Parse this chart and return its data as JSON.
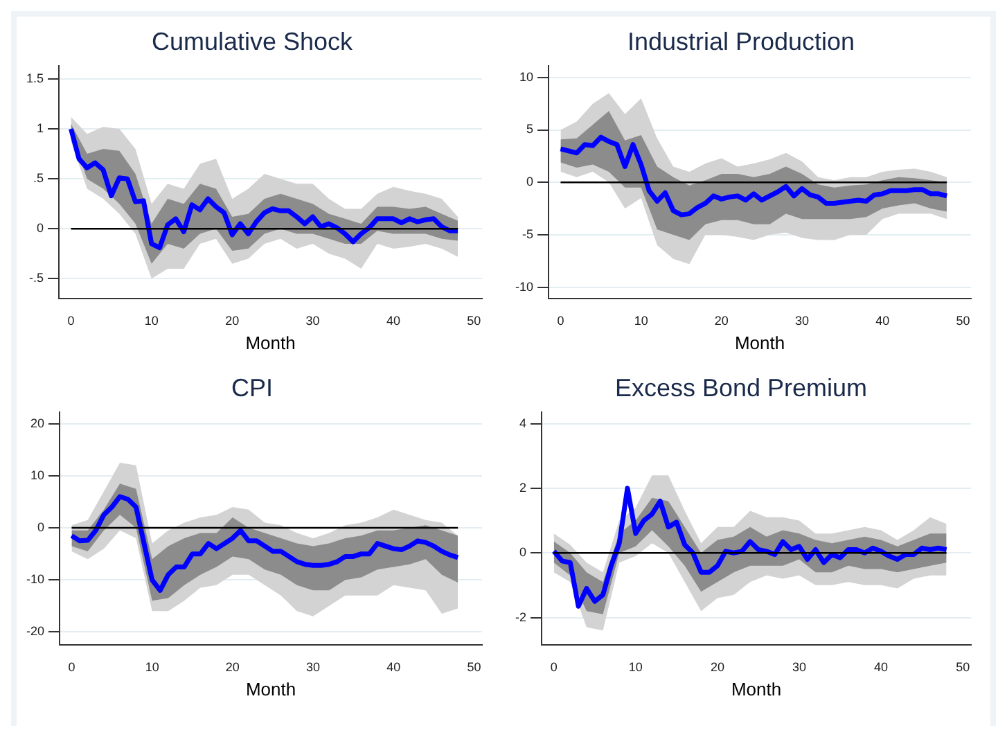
{
  "chart_data": [
    {
      "type": "line",
      "title": "Cumulative Shock",
      "xlabel": "Month",
      "xlim": [
        -1.5,
        51
      ],
      "xticks": [
        0,
        10,
        20,
        30,
        40,
        50
      ],
      "ylim": [
        -0.7,
        1.63
      ],
      "yticks": [
        {
          "value": -0.5,
          "label": "-.5"
        },
        0,
        {
          "value": 0.5,
          "label": ".5"
        },
        1,
        1.5
      ],
      "grid": "y",
      "legend": false,
      "ref_lines": [
        {
          "axis": "y",
          "value": 0,
          "color": "#000000"
        }
      ],
      "series": [
        {
          "color": "#d3d3d3",
          "x": [
            0,
            2,
            4,
            6,
            8,
            10,
            12,
            14,
            16,
            18,
            20,
            22,
            24,
            26,
            28,
            30,
            32,
            34,
            36,
            38,
            40,
            42,
            44,
            46,
            48
          ],
          "values": [
            null,
            null,
            null,
            null,
            null,
            null,
            null,
            null,
            null,
            null,
            null,
            null,
            null,
            null,
            null,
            null,
            null,
            null,
            null,
            null,
            null,
            null,
            null,
            null,
            null
          ],
          "lower": [
            0.88,
            0.4,
            0.3,
            0.15,
            -0.05,
            -0.5,
            -0.4,
            -0.4,
            -0.15,
            -0.1,
            -0.35,
            -0.3,
            -0.15,
            -0.1,
            -0.2,
            -0.15,
            -0.25,
            -0.3,
            -0.4,
            -0.15,
            -0.2,
            -0.18,
            -0.15,
            -0.2,
            -0.28
          ],
          "upper": [
            1.12,
            0.95,
            1.02,
            1.0,
            0.8,
            0.25,
            0.45,
            0.4,
            0.65,
            0.7,
            0.3,
            0.4,
            0.55,
            0.5,
            0.45,
            0.45,
            0.3,
            0.2,
            0.2,
            0.35,
            0.42,
            0.38,
            0.35,
            0.3,
            0.12
          ]
        },
        {
          "color": "#8c8c8c",
          "x": [
            0,
            2,
            4,
            6,
            8,
            10,
            12,
            14,
            16,
            18,
            20,
            22,
            24,
            26,
            28,
            30,
            32,
            34,
            36,
            38,
            40,
            42,
            44,
            46,
            48
          ],
          "values": [
            null,
            null,
            null,
            null,
            null,
            null,
            null,
            null,
            null,
            null,
            null,
            null,
            null,
            null,
            null,
            null,
            null,
            null,
            null,
            null,
            null,
            null,
            null,
            null,
            null
          ],
          "lower": [
            0.95,
            0.5,
            0.4,
            0.25,
            0.05,
            -0.35,
            -0.15,
            -0.2,
            -0.05,
            0.0,
            -0.22,
            -0.2,
            -0.05,
            0.0,
            -0.05,
            -0.05,
            -0.1,
            -0.15,
            -0.15,
            -0.02,
            -0.05,
            -0.05,
            -0.05,
            -0.1,
            -0.12
          ],
          "upper": [
            1.05,
            0.75,
            0.8,
            0.78,
            0.55,
            0.05,
            0.3,
            0.25,
            0.45,
            0.4,
            0.12,
            0.15,
            0.3,
            0.35,
            0.3,
            0.25,
            0.15,
            0.1,
            0.05,
            0.22,
            0.22,
            0.2,
            0.22,
            0.15,
            0.08
          ]
        },
        {
          "color": "#0000ff",
          "x": [
            0,
            1,
            2,
            3,
            4,
            5,
            6,
            7,
            8,
            9,
            10,
            11,
            12,
            13,
            14,
            15,
            16,
            17,
            18,
            19,
            20,
            21,
            22,
            23,
            24,
            25,
            26,
            27,
            28,
            29,
            30,
            31,
            32,
            33,
            34,
            35,
            36,
            37,
            38,
            39,
            40,
            41,
            42,
            43,
            44,
            45,
            46,
            47,
            48
          ],
          "values": [
            1.0,
            0.7,
            0.61,
            0.66,
            0.59,
            0.33,
            0.51,
            0.5,
            0.27,
            0.28,
            -0.15,
            -0.19,
            0.04,
            0.1,
            -0.03,
            0.24,
            0.19,
            0.3,
            0.22,
            0.16,
            -0.06,
            0.05,
            -0.05,
            0.07,
            0.16,
            0.2,
            0.18,
            0.18,
            0.12,
            0.05,
            0.12,
            0.02,
            0.05,
            0.01,
            -0.05,
            -0.13,
            -0.05,
            0.01,
            0.1,
            0.1,
            0.1,
            0.06,
            0.1,
            0.07,
            0.09,
            0.1,
            0.02,
            -0.02,
            -0.02
          ]
        }
      ]
    },
    {
      "type": "line",
      "title": "Industrial Production",
      "xlabel": "Month",
      "xlim": [
        -1.5,
        51
      ],
      "xticks": [
        0,
        10,
        20,
        30,
        40,
        50
      ],
      "ylim": [
        -11.1,
        11.1
      ],
      "yticks": [
        -10,
        -5,
        0,
        5,
        10
      ],
      "grid": "y",
      "legend": false,
      "ref_lines": [
        {
          "axis": "y",
          "value": 0,
          "color": "#000000"
        }
      ],
      "series": [
        {
          "color": "#d3d3d3",
          "x": [
            0,
            2,
            4,
            6,
            8,
            10,
            12,
            14,
            16,
            18,
            20,
            22,
            24,
            26,
            28,
            30,
            32,
            34,
            36,
            38,
            40,
            42,
            44,
            46,
            48
          ],
          "values": [
            null,
            null,
            null,
            null,
            null,
            null,
            null,
            null,
            null,
            null,
            null,
            null,
            null,
            null,
            null,
            null,
            null,
            null,
            null,
            null,
            null,
            null,
            null,
            null,
            null
          ],
          "lower": [
            1.0,
            0.5,
            1.0,
            0.0,
            -2.5,
            -1.5,
            -6.0,
            -7.3,
            -7.8,
            -5.0,
            -5.0,
            -5.2,
            -5.5,
            -5.0,
            -4.8,
            -5.3,
            -5.5,
            -5.5,
            -5.0,
            -5.0,
            -3.5,
            -3.0,
            -3.0,
            -3.0,
            -3.5
          ],
          "upper": [
            5.0,
            5.8,
            7.5,
            8.5,
            6.5,
            8.0,
            4.2,
            1.5,
            1.0,
            1.8,
            2.3,
            1.5,
            1.8,
            2.2,
            2.8,
            2.0,
            0.5,
            0.2,
            0.5,
            0.5,
            1.0,
            1.2,
            1.3,
            1.0,
            0.5
          ]
        },
        {
          "color": "#8c8c8c",
          "x": [
            0,
            2,
            4,
            6,
            8,
            10,
            12,
            14,
            16,
            18,
            20,
            22,
            24,
            26,
            28,
            30,
            32,
            34,
            36,
            38,
            40,
            42,
            44,
            46,
            48
          ],
          "values": [
            null,
            null,
            null,
            null,
            null,
            null,
            null,
            null,
            null,
            null,
            null,
            null,
            null,
            null,
            null,
            null,
            null,
            null,
            null,
            null,
            null,
            null,
            null,
            null,
            null
          ],
          "lower": [
            1.9,
            1.4,
            1.7,
            1.0,
            -0.5,
            -0.5,
            -4.5,
            -5.0,
            -5.5,
            -4.0,
            -3.6,
            -3.6,
            -4.0,
            -4.0,
            -3.0,
            -3.5,
            -3.5,
            -3.5,
            -3.5,
            -3.3,
            -2.5,
            -2.2,
            -2.0,
            -2.5,
            -2.8
          ],
          "upper": [
            4.1,
            4.2,
            5.5,
            6.8,
            4.0,
            4.5,
            1.5,
            0.5,
            -0.3,
            0.2,
            0.8,
            0.8,
            0.5,
            0.8,
            1.5,
            0.8,
            -0.2,
            -0.5,
            -0.3,
            -0.2,
            0.2,
            0.5,
            0.4,
            0.2,
            0.0
          ]
        },
        {
          "color": "#0000ff",
          "x": [
            0,
            1,
            2,
            3,
            4,
            5,
            6,
            7,
            8,
            9,
            10,
            11,
            12,
            13,
            14,
            15,
            16,
            17,
            18,
            19,
            20,
            21,
            22,
            23,
            24,
            25,
            26,
            27,
            28,
            29,
            30,
            31,
            32,
            33,
            34,
            35,
            36,
            37,
            38,
            39,
            40,
            41,
            42,
            43,
            44,
            45,
            46,
            47,
            48
          ],
          "values": [
            3.2,
            3.0,
            2.8,
            3.6,
            3.5,
            4.3,
            3.9,
            3.6,
            1.5,
            3.6,
            1.7,
            -0.8,
            -1.8,
            -1.0,
            -2.7,
            -3.1,
            -3.0,
            -2.4,
            -2.0,
            -1.3,
            -1.6,
            -1.4,
            -1.3,
            -1.7,
            -1.1,
            -1.7,
            -1.3,
            -0.9,
            -0.4,
            -1.3,
            -0.6,
            -1.2,
            -1.4,
            -2.0,
            -2.0,
            -1.9,
            -1.8,
            -1.7,
            -1.8,
            -1.2,
            -1.1,
            -0.8,
            -0.8,
            -0.8,
            -0.7,
            -0.7,
            -1.1,
            -1.1,
            -1.3
          ]
        }
      ]
    },
    {
      "type": "line",
      "title": "CPI",
      "xlabel": "Month",
      "xlim": [
        -1.5,
        51
      ],
      "xticks": [
        0,
        10,
        20,
        30,
        40,
        50
      ],
      "ylim": [
        -22.5,
        22.2
      ],
      "yticks": [
        -20,
        -10,
        0,
        10,
        20
      ],
      "grid": "y",
      "legend": false,
      "ref_lines": [
        {
          "axis": "y",
          "value": 0,
          "color": "#000000"
        }
      ],
      "series": [
        {
          "color": "#d3d3d3",
          "x": [
            0,
            2,
            4,
            6,
            8,
            10,
            12,
            14,
            16,
            18,
            20,
            22,
            24,
            26,
            28,
            30,
            32,
            34,
            36,
            38,
            40,
            42,
            44,
            46,
            48
          ],
          "values": [
            null,
            null,
            null,
            null,
            null,
            null,
            null,
            null,
            null,
            null,
            null,
            null,
            null,
            null,
            null,
            null,
            null,
            null,
            null,
            null,
            null,
            null,
            null,
            null,
            null
          ],
          "lower": [
            -4.5,
            -6,
            -4,
            -0.5,
            -2,
            -16,
            -16,
            -14,
            -11.5,
            -11,
            -9,
            -9,
            -11,
            -13,
            -16,
            -17,
            -15,
            -13,
            -13,
            -13,
            -11,
            -11.5,
            -12,
            -16.5,
            -15.5
          ],
          "upper": [
            0.5,
            1.5,
            7,
            12.5,
            12,
            -3,
            -0.5,
            1,
            2,
            2.5,
            4,
            3.5,
            1,
            0.5,
            -1,
            -2,
            -1,
            0.5,
            1,
            2,
            3.5,
            2.5,
            1.5,
            1,
            -1.5
          ]
        },
        {
          "color": "#8c8c8c",
          "x": [
            0,
            2,
            4,
            6,
            8,
            10,
            12,
            14,
            16,
            18,
            20,
            22,
            24,
            26,
            28,
            30,
            32,
            34,
            36,
            38,
            40,
            42,
            44,
            46,
            48
          ],
          "values": [
            null,
            null,
            null,
            null,
            null,
            null,
            null,
            null,
            null,
            null,
            null,
            null,
            null,
            null,
            null,
            null,
            null,
            null,
            null,
            null,
            null,
            null,
            null,
            null,
            null
          ],
          "lower": [
            -3.5,
            -4.5,
            -0.5,
            2.5,
            0,
            -14,
            -13.5,
            -11,
            -9,
            -7.5,
            -5.5,
            -6,
            -8,
            -9,
            -11,
            -12,
            -12,
            -10,
            -9.5,
            -8,
            -7.5,
            -7,
            -6,
            -9,
            -10.5
          ],
          "upper": [
            -0.5,
            -0.5,
            3.5,
            8.5,
            7.5,
            -6,
            -3.5,
            -2,
            -1,
            -1,
            2,
            0,
            -1,
            -2,
            -3,
            -3.5,
            -3,
            -2,
            -1.5,
            -0.5,
            -0.5,
            0,
            0.5,
            -0.5,
            -1.5
          ]
        },
        {
          "color": "#0000ff",
          "x": [
            0,
            1,
            2,
            3,
            4,
            5,
            6,
            7,
            8,
            9,
            10,
            11,
            12,
            13,
            14,
            15,
            16,
            17,
            18,
            19,
            20,
            21,
            22,
            23,
            24,
            25,
            26,
            27,
            28,
            29,
            30,
            31,
            32,
            33,
            34,
            35,
            36,
            37,
            38,
            39,
            40,
            41,
            42,
            43,
            44,
            45,
            46,
            47,
            48
          ],
          "values": [
            -1.5,
            -2.5,
            -2.4,
            -0.5,
            2.5,
            4,
            6,
            5.5,
            4,
            -3,
            -10,
            -12,
            -9,
            -7.5,
            -7.5,
            -5,
            -5,
            -3,
            -4,
            -3,
            -2,
            -0.5,
            -2.5,
            -2.5,
            -3.5,
            -4.5,
            -4.5,
            -5.5,
            -6.5,
            -7,
            -7.2,
            -7.2,
            -7,
            -6.5,
            -5.5,
            -5.5,
            -5,
            -5,
            -3,
            -3.5,
            -4,
            -4.2,
            -3.5,
            -2.5,
            -2.8,
            -3.5,
            -4.5,
            -5.2,
            -5.7
          ]
        }
      ]
    },
    {
      "type": "line",
      "title": "Excess Bond Premium",
      "xlabel": "Month",
      "xlim": [
        -1.5,
        51
      ],
      "xticks": [
        0,
        10,
        20,
        30,
        40,
        50
      ],
      "ylim": [
        -2.85,
        4.35
      ],
      "yticks": [
        -2,
        0,
        2,
        4
      ],
      "grid": "y",
      "legend": false,
      "ref_lines": [
        {
          "axis": "y",
          "value": 0,
          "color": "#000000"
        }
      ],
      "series": [
        {
          "color": "#d3d3d3",
          "x": [
            0,
            2,
            4,
            6,
            8,
            10,
            12,
            14,
            16,
            18,
            20,
            22,
            24,
            26,
            28,
            30,
            32,
            34,
            36,
            38,
            40,
            42,
            44,
            46,
            48
          ],
          "values": [
            null,
            null,
            null,
            null,
            null,
            null,
            null,
            null,
            null,
            null,
            null,
            null,
            null,
            null,
            null,
            null,
            null,
            null,
            null,
            null,
            null,
            null,
            null,
            null,
            null
          ],
          "lower": [
            -0.6,
            -0.9,
            -2.3,
            -2.4,
            -0.3,
            -0.1,
            0.3,
            0,
            -0.9,
            -1.8,
            -1.4,
            -1.3,
            -0.9,
            -0.7,
            -0.8,
            -0.7,
            -1.0,
            -1.0,
            -0.9,
            -1.0,
            -1.0,
            -1.1,
            -0.8,
            -0.7,
            -0.7
          ],
          "upper": [
            0.6,
            0.25,
            -0.3,
            -0.6,
            1.0,
            1.4,
            2.4,
            2.4,
            1.3,
            0.3,
            0.8,
            0.8,
            1.3,
            1.1,
            1.1,
            1.0,
            0.6,
            0.6,
            0.7,
            0.8,
            0.7,
            0.4,
            0.7,
            1.1,
            0.9
          ]
        },
        {
          "color": "#8c8c8c",
          "x": [
            0,
            2,
            4,
            6,
            8,
            10,
            12,
            14,
            16,
            18,
            20,
            22,
            24,
            26,
            28,
            30,
            32,
            34,
            36,
            38,
            40,
            42,
            44,
            46,
            48
          ],
          "values": [
            null,
            null,
            null,
            null,
            null,
            null,
            null,
            null,
            null,
            null,
            null,
            null,
            null,
            null,
            null,
            null,
            null,
            null,
            null,
            null,
            null,
            null,
            null,
            null,
            null
          ],
          "lower": [
            -0.3,
            -0.7,
            -1.8,
            -1.9,
            0,
            0.2,
            0.7,
            0.2,
            -0.4,
            -1.2,
            -0.9,
            -0.6,
            -0.4,
            -0.4,
            -0.4,
            -0.2,
            -0.6,
            -0.6,
            -0.4,
            -0.5,
            -0.5,
            -0.6,
            -0.5,
            -0.4,
            -0.3
          ],
          "upper": [
            0.35,
            0,
            -0.6,
            -0.9,
            0.6,
            1.0,
            1.7,
            1.6,
            0.8,
            0,
            0.4,
            0.5,
            0.8,
            0.5,
            0.7,
            0.6,
            0.4,
            0.3,
            0.4,
            0.5,
            0.4,
            0.2,
            0.4,
            0.6,
            0.6
          ]
        },
        {
          "color": "#0000ff",
          "x": [
            0,
            1,
            2,
            3,
            4,
            5,
            6,
            7,
            8,
            9,
            10,
            11,
            12,
            13,
            14,
            15,
            16,
            17,
            18,
            19,
            20,
            21,
            22,
            23,
            24,
            25,
            26,
            27,
            28,
            29,
            30,
            31,
            32,
            33,
            34,
            35,
            36,
            37,
            38,
            39,
            40,
            41,
            42,
            43,
            44,
            45,
            46,
            47,
            48
          ],
          "values": [
            0.05,
            -0.25,
            -0.3,
            -1.65,
            -1.1,
            -1.5,
            -1.3,
            -0.4,
            0.3,
            2.0,
            0.6,
            1.0,
            1.2,
            1.6,
            0.8,
            0.95,
            0.25,
            0,
            -0.6,
            -0.6,
            -0.4,
            0.05,
            0,
            0.05,
            0.35,
            0.1,
            0.05,
            -0.05,
            0.35,
            0.1,
            0.2,
            -0.2,
            0.1,
            -0.3,
            -0.05,
            -0.15,
            0.1,
            0.1,
            0,
            0.15,
            0.05,
            -0.1,
            -0.2,
            -0.05,
            -0.05,
            0.15,
            0.1,
            0.15,
            0.1
          ]
        }
      ]
    }
  ]
}
